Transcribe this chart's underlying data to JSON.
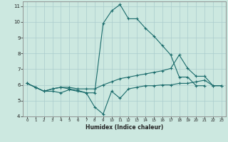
{
  "xlabel": "Humidex (Indice chaleur)",
  "background_color": "#cce8e0",
  "grid_color": "#aacccc",
  "line_color": "#1a6b6b",
  "xlim": [
    -0.5,
    23.5
  ],
  "ylim": [
    4,
    11.3
  ],
  "xticks": [
    0,
    1,
    2,
    3,
    4,
    5,
    6,
    7,
    8,
    9,
    10,
    11,
    12,
    13,
    14,
    15,
    16,
    17,
    18,
    19,
    20,
    21,
    22,
    23
  ],
  "yticks": [
    4,
    5,
    6,
    7,
    8,
    9,
    10,
    11
  ],
  "series": [
    {
      "x": [
        0,
        1,
        2,
        3,
        4,
        5,
        6,
        7,
        8,
        9,
        10,
        11,
        12,
        13,
        14,
        15,
        16,
        17,
        18,
        19,
        20,
        21,
        22,
        23
      ],
      "y": [
        6.1,
        5.85,
        5.6,
        5.75,
        5.85,
        5.75,
        5.65,
        5.5,
        5.5,
        9.9,
        10.7,
        11.1,
        10.2,
        10.2,
        9.6,
        9.1,
        8.5,
        7.9,
        6.5,
        6.5,
        5.95,
        5.95,
        null,
        null
      ]
    },
    {
      "x": [
        0,
        1,
        2,
        3,
        4,
        5,
        6,
        7,
        8,
        9,
        10,
        11,
        12,
        13,
        14,
        15,
        16,
        17,
        18,
        19,
        20,
        21,
        22,
        23
      ],
      "y": [
        6.1,
        5.85,
        5.6,
        5.75,
        5.85,
        5.85,
        5.75,
        5.75,
        5.75,
        6.0,
        6.2,
        6.4,
        6.5,
        6.6,
        6.7,
        6.8,
        6.9,
        7.05,
        7.9,
        7.05,
        6.55,
        6.55,
        5.95,
        5.95
      ]
    },
    {
      "x": [
        0,
        1,
        2,
        3,
        4,
        5,
        6,
        7,
        8,
        9,
        10,
        11,
        12,
        13,
        14,
        15,
        16,
        17,
        18,
        19,
        20,
        21,
        22,
        23
      ],
      "y": [
        6.1,
        5.85,
        5.6,
        5.6,
        5.5,
        5.7,
        5.6,
        5.5,
        4.6,
        4.15,
        5.6,
        5.15,
        5.75,
        5.85,
        5.95,
        5.95,
        6.0,
        6.0,
        6.1,
        6.1,
        6.2,
        6.3,
        5.95,
        5.95
      ]
    }
  ]
}
